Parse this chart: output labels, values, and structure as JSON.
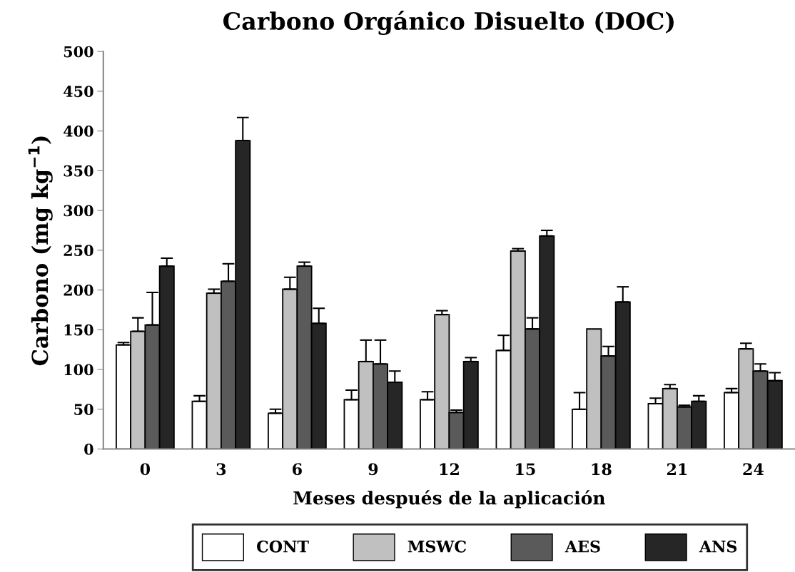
{
  "chart_data": {
    "type": "bar",
    "title": "Carbono Orgánico Disuelto (DOC)",
    "xlabel": "Meses después de la aplicación",
    "ylabel": "Carbono (mg kg$^{−1}$)",
    "categories": [
      "0",
      "3",
      "6",
      "9",
      "12",
      "15",
      "18",
      "21",
      "24"
    ],
    "series": [
      {
        "name": "CONT",
        "color": "#ffffff",
        "values": [
          131,
          60,
          45,
          62,
          62,
          124,
          50,
          57,
          71
        ],
        "errors": [
          [
            131,
            134
          ],
          [
            60,
            67
          ],
          [
            45,
            50
          ],
          [
            62,
            74
          ],
          [
            62,
            72
          ],
          [
            124,
            143
          ],
          [
            50,
            71
          ],
          [
            57,
            64
          ],
          [
            71,
            76
          ]
        ]
      },
      {
        "name": "MSWC",
        "color": "#c0c0c0",
        "values": [
          148,
          196,
          201,
          110,
          169,
          249,
          151,
          76,
          126
        ],
        "errors": [
          [
            148,
            165
          ],
          [
            196,
            201
          ],
          [
            201,
            216
          ],
          [
            110,
            137
          ],
          [
            169,
            174
          ],
          [
            249,
            252
          ],
          null,
          [
            76,
            81
          ],
          [
            126,
            133
          ]
        ]
      },
      {
        "name": "AES",
        "color": "#5a5a5a",
        "values": [
          156,
          211,
          230,
          107,
          46,
          151,
          117,
          53,
          98
        ],
        "errors": [
          [
            156,
            197
          ],
          [
            211,
            233
          ],
          [
            230,
            235
          ],
          [
            107,
            137
          ],
          [
            46,
            49
          ],
          [
            151,
            165
          ],
          [
            117,
            129
          ],
          [
            53,
            55
          ],
          [
            98,
            107
          ]
        ]
      },
      {
        "name": "ANS",
        "color": "#262626",
        "values": [
          230,
          388,
          158,
          84,
          110,
          268,
          185,
          60,
          86
        ],
        "errors": [
          [
            230,
            240
          ],
          [
            388,
            417
          ],
          [
            158,
            177
          ],
          [
            84,
            98
          ],
          [
            110,
            115
          ],
          [
            268,
            275
          ],
          [
            185,
            204
          ],
          [
            60,
            67
          ],
          [
            86,
            96
          ]
        ]
      }
    ],
    "ylim": [
      0,
      500
    ],
    "yticks": [
      0,
      50,
      100,
      150,
      200,
      250,
      300,
      350,
      400,
      450,
      500
    ],
    "grid": false,
    "legend": "bottom"
  }
}
